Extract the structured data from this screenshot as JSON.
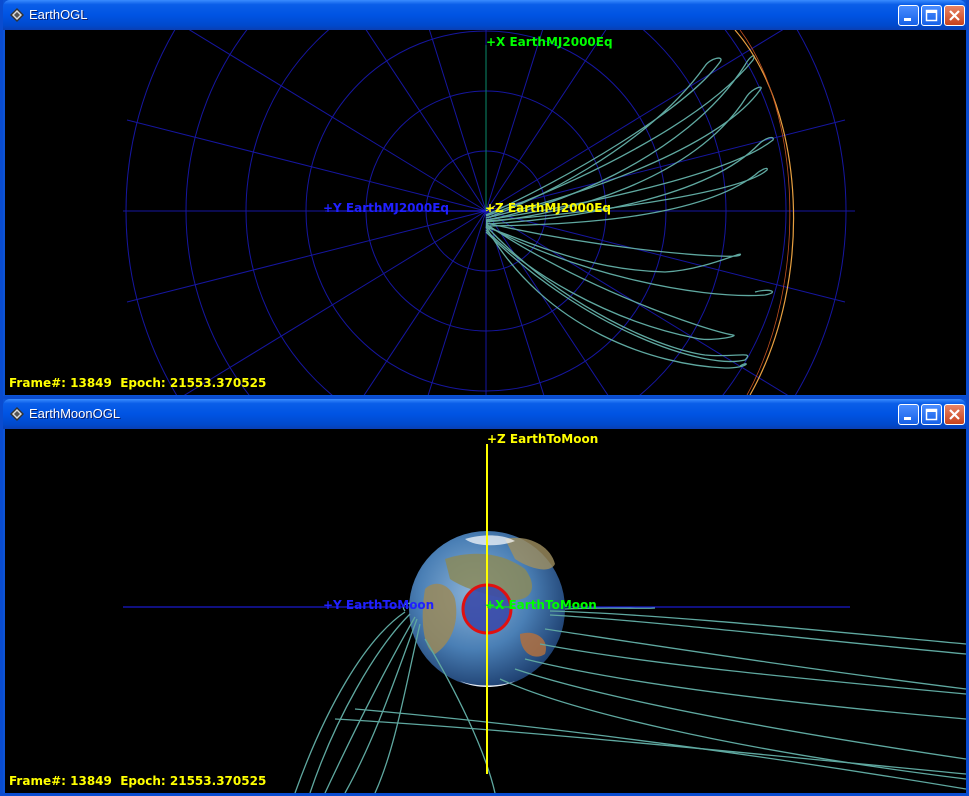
{
  "window1": {
    "title": "EarthOGL",
    "icon": "gmat-diamond-icon",
    "axes": {
      "x_label": "+X EarthMJ2000Eq",
      "y_label": "+Y EarthMJ2000Eq",
      "z_label": "+Z EarthMJ2000Eq"
    },
    "status": "Frame#: 13849  Epoch: 21553.370525"
  },
  "window2": {
    "title": "EarthMoonOGL",
    "icon": "gmat-diamond-icon",
    "axes": {
      "z_label": "+Z EarthToMoon",
      "y_label": "+Y EarthToMoon",
      "x_label": "+X EarthToMoon"
    },
    "status": "Frame#: 13849  Epoch: 21553.370525"
  },
  "controls": {
    "minimize": "minimize-icon",
    "maximize": "maximize-icon",
    "close": "close-icon"
  },
  "colors": {
    "trajectory": "#5fa8a0",
    "grid": "#1a1aa8",
    "x_axis": "#00ff00",
    "y_axis": "#0000ff",
    "z_axis": "#ffff00",
    "label_text": "#ffff00"
  }
}
